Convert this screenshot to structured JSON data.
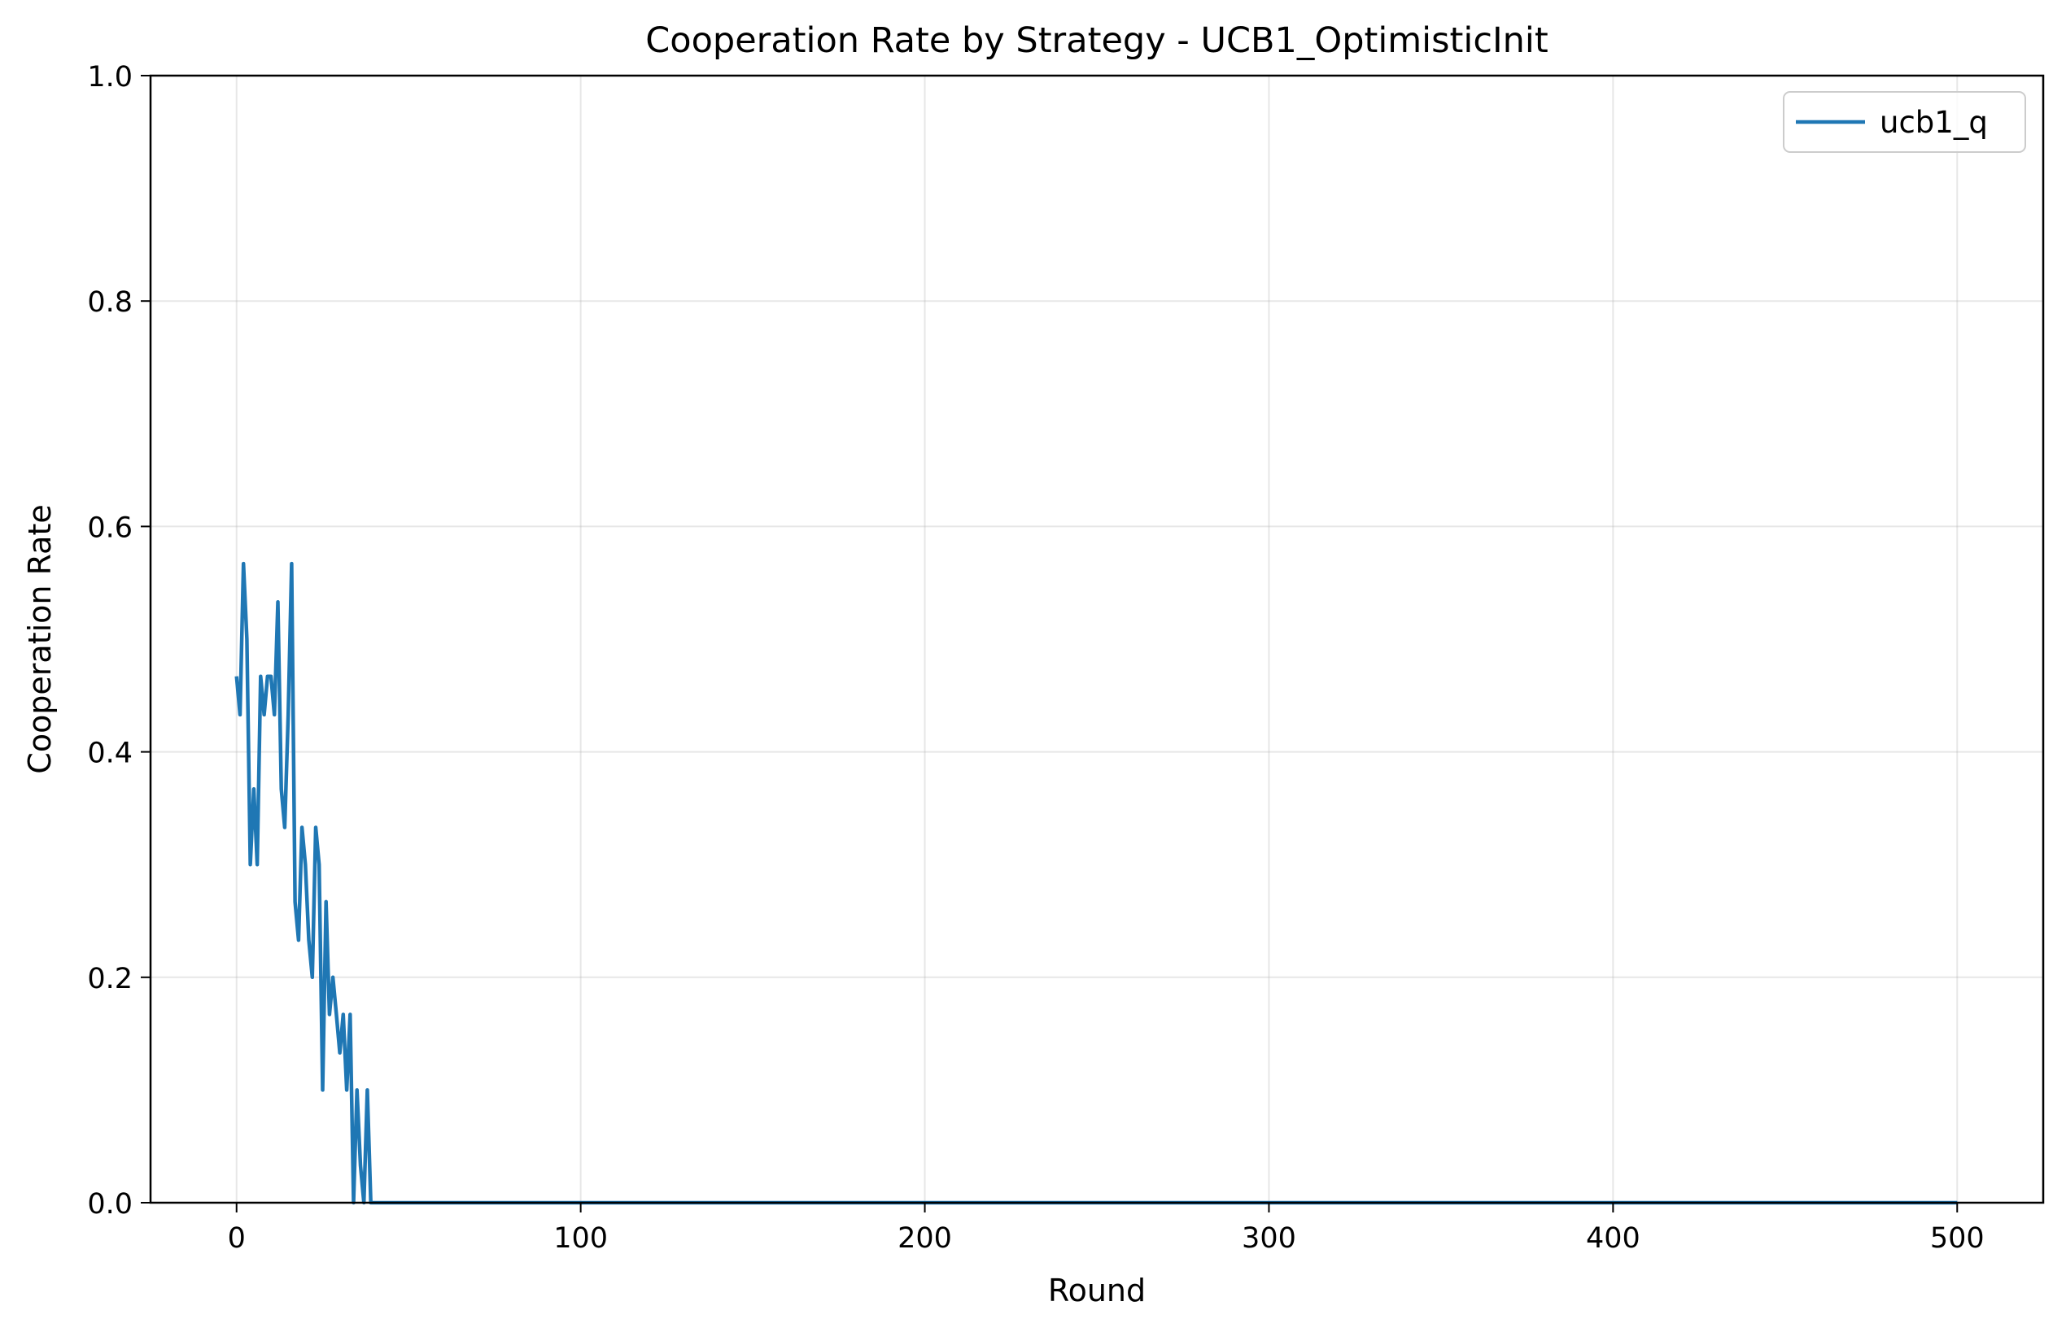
{
  "chart_data": {
    "type": "line",
    "title": "Cooperation Rate by Strategy - UCB1_OptimisticInit",
    "xlabel": "Round",
    "ylabel": "Cooperation Rate",
    "xlim": [
      -25,
      525
    ],
    "ylim": [
      0,
      1
    ],
    "xticks": [
      0,
      100,
      200,
      300,
      400,
      500
    ],
    "xtick_labels": [
      "0",
      "100",
      "200",
      "300",
      "400",
      "500"
    ],
    "yticks": [
      0,
      0.2,
      0.4,
      0.6,
      0.8,
      1.0
    ],
    "ytick_labels": [
      "0.0",
      "0.2",
      "0.4",
      "0.6",
      "0.8",
      "1.0"
    ],
    "grid": true,
    "legend_position": "upper right",
    "series": [
      {
        "name": "ucb1_q",
        "color": "#1f77b4",
        "x": [
          0,
          1,
          2,
          3,
          4,
          5,
          6,
          7,
          8,
          9,
          10,
          11,
          12,
          13,
          14,
          15,
          16,
          17,
          18,
          19,
          20,
          21,
          22,
          23,
          24,
          25,
          26,
          27,
          28,
          29,
          30,
          31,
          32,
          33,
          34,
          35,
          36,
          37,
          38,
          39,
          40,
          45,
          50,
          100,
          150,
          200,
          250,
          300,
          350,
          400,
          450,
          500
        ],
        "y": [
          0.467,
          0.433,
          0.567,
          0.5,
          0.3,
          0.367,
          0.3,
          0.467,
          0.433,
          0.467,
          0.467,
          0.433,
          0.533,
          0.367,
          0.333,
          0.433,
          0.567,
          0.267,
          0.233,
          0.333,
          0.3,
          0.233,
          0.2,
          0.333,
          0.3,
          0.1,
          0.267,
          0.167,
          0.2,
          0.167,
          0.133,
          0.167,
          0.1,
          0.167,
          0,
          0.1,
          0.033,
          0,
          0.1,
          0,
          0,
          0,
          0,
          0,
          0,
          0,
          0,
          0,
          0,
          0,
          0,
          0
        ]
      }
    ]
  }
}
